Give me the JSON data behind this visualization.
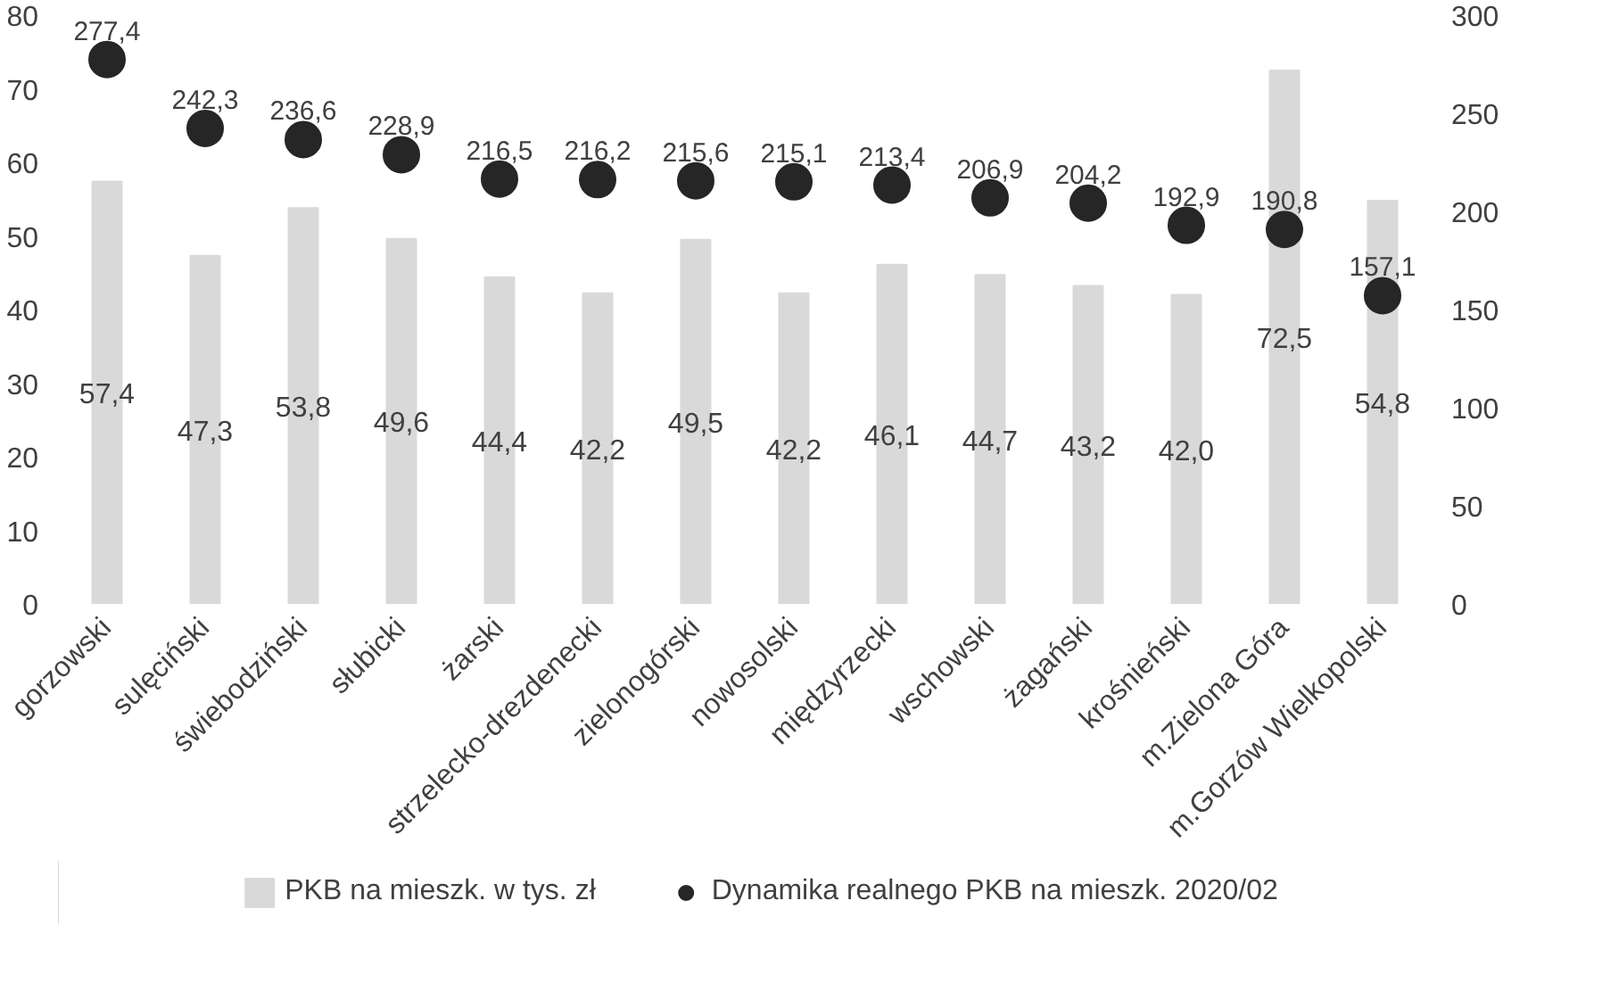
{
  "chart_data": {
    "type": "bar",
    "categories": [
      "gorzowski",
      "sulęciński",
      "świebodziński",
      "słubicki",
      "żarski",
      "strzelecko-drezdenecki",
      "zielonogórski",
      "nowosolski",
      "międzyrzecki",
      "wschowski",
      "żagański",
      "krośnieński",
      "m.Zielona Góra",
      "m.Gorzów Wielkopolski"
    ],
    "series": [
      {
        "name": "PKB na mieszk. w tys. zł",
        "type": "bar",
        "color": "#d9d9d9",
        "values": [
          57.4,
          47.3,
          53.8,
          49.6,
          44.4,
          42.2,
          49.5,
          42.2,
          46.1,
          44.7,
          43.2,
          42.0,
          72.5,
          54.8
        ],
        "value_labels": [
          "57,4",
          "47,3",
          "53,8",
          "49,6",
          "44,4",
          "42,2",
          "49,5",
          "42,2",
          "46,1",
          "44,7",
          "43,2",
          "42,0",
          "72,5",
          "54,8"
        ]
      },
      {
        "name": "Dynamika realnego PKB na mieszk. 2020/02",
        "type": "scatter",
        "axis": "y2",
        "marker": "circle",
        "color": "#262626",
        "values": [
          277.4,
          242.3,
          236.6,
          228.9,
          216.5,
          216.2,
          215.6,
          215.1,
          213.4,
          206.9,
          204.2,
          192.9,
          190.8,
          157.1
        ],
        "value_labels": [
          "277,4",
          "242,3",
          "236,6",
          "228,9",
          "216,5",
          "216,2",
          "215,6",
          "215,1",
          "213,4",
          "206,9",
          "204,2",
          "192,9",
          "190,8",
          "157,1"
        ]
      }
    ],
    "ylim": [
      0,
      80
    ],
    "yticks": [
      0,
      10,
      20,
      30,
      40,
      50,
      60,
      70,
      80
    ],
    "y2lim": [
      0,
      300
    ],
    "y2ticks": [
      0,
      50,
      100,
      150,
      200,
      250,
      300
    ],
    "grid": false,
    "legend": "bottom"
  }
}
